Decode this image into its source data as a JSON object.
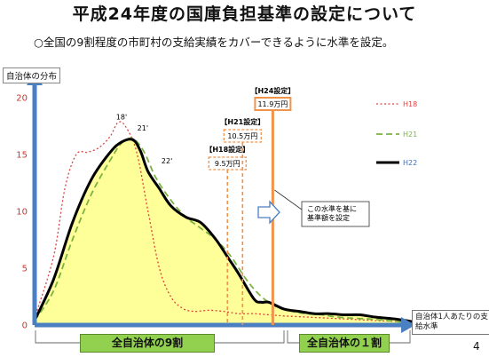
{
  "header": {
    "title": "平成24年度の国庫負担基準の設定について",
    "subtitle": "○全国の9割程度の市町村の支給実績をカバーできるように水準を設定。"
  },
  "chart_data": {
    "type": "area",
    "ylabel": "自治体の分布",
    "xlabel": "自治体1人あたりの支給水準",
    "ylim": [
      0,
      20
    ],
    "yticks": [
      "0",
      "5",
      "10",
      "15",
      "20"
    ],
    "series": [
      {
        "name": "H18",
        "color": "#e04040",
        "style": "dotted",
        "x": [
          0,
          2.5,
          4,
          5.5,
          7,
          8.5,
          10,
          11,
          12,
          13.5,
          15,
          16.5,
          18,
          19.5,
          21,
          23,
          25,
          27,
          29,
          31,
          33,
          36,
          39,
          42,
          45,
          48,
          50
        ],
        "y": [
          0.6,
          6,
          12,
          15,
          15.2,
          15.6,
          16.6,
          17.8,
          17.5,
          15.2,
          10,
          5,
          2.5,
          1.5,
          1.2,
          1.3,
          1.2,
          1.0,
          1.0,
          0.9,
          0.8,
          0.7,
          0.6,
          0.5,
          0.4,
          0.3,
          0.2
        ]
      },
      {
        "name": "H21",
        "color": "#7cb342",
        "style": "dashed",
        "x": [
          0,
          2.5,
          5,
          7.5,
          10,
          11.5,
          13,
          14.5,
          16,
          18,
          20,
          22,
          24,
          26,
          28,
          30,
          32,
          34,
          36,
          38,
          40,
          42,
          45,
          48,
          50
        ],
        "y": [
          0.4,
          3,
          7.5,
          11.5,
          14.5,
          16,
          16.4,
          15.2,
          13,
          11,
          9.5,
          8.5,
          7.5,
          6,
          4,
          2.5,
          1.6,
          1.2,
          1.0,
          0.9,
          0.7,
          0.6,
          0.5,
          0.3,
          0.2
        ]
      },
      {
        "name": "H22",
        "color": "#000000",
        "style": "solid",
        "x": [
          0,
          2.5,
          5,
          7.5,
          10,
          11.5,
          13,
          14,
          15,
          16.5,
          18,
          20,
          22,
          24,
          25.5,
          27,
          29,
          30,
          31,
          33,
          35,
          37,
          39,
          41,
          43,
          45,
          48,
          50
        ],
        "y": [
          0.4,
          4,
          9,
          12.8,
          15.2,
          16.1,
          16.3,
          15.3,
          13.5,
          12,
          10.5,
          9.5,
          9,
          7.5,
          6,
          4.5,
          2.3,
          2.0,
          2.0,
          1.4,
          1.2,
          1.0,
          1.0,
          0.9,
          0.9,
          0.7,
          0.5,
          0.3
        ]
      }
    ],
    "curve_labels": [
      {
        "text": "18'",
        "x": 11.5,
        "y": 18.1
      },
      {
        "text": "21'",
        "x": 14.3,
        "y": 17.1
      },
      {
        "text": "22'",
        "x": 17.5,
        "y": 14.2
      }
    ],
    "thresholds": [
      {
        "label": "【H18設定】",
        "value_text": "9.5万円",
        "x": 25.5
      },
      {
        "label": "【H21設定】",
        "value_text": "10.5万円",
        "x": 27.5
      },
      {
        "label": "【H24設定】",
        "value_text": "11.9万円",
        "x": 31.5
      }
    ],
    "arrow_note": "この水準を基に 基準額を設定",
    "bands": [
      {
        "text": "全自治体の9割",
        "from": 0,
        "to": 32
      },
      {
        "text": "全自治体の１割",
        "from": 32,
        "to": 49
      }
    ],
    "legend_position": "top-right",
    "grid": false
  },
  "page_number": "4"
}
